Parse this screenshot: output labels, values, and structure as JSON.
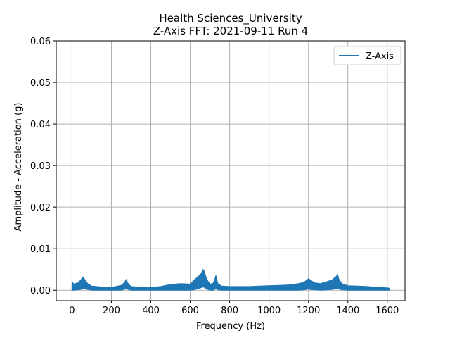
{
  "chart_data": {
    "type": "line",
    "title": "Health Sciences_University",
    "subtitle": "Z-Axis FFT: 2021-09-11 Run 4",
    "xlabel": "Frequency (Hz)",
    "ylabel": "Amplitude - Acceleration (g)",
    "xlim": [
      -80,
      1690
    ],
    "ylim": [
      -0.0025,
      0.06
    ],
    "xticks": [
      0,
      200,
      400,
      600,
      800,
      1000,
      1200,
      1400,
      1600
    ],
    "xtick_labels": [
      "0",
      "200",
      "400",
      "600",
      "800",
      "1000",
      "1200",
      "1400",
      "1600"
    ],
    "yticks": [
      0.0,
      0.01,
      0.02,
      0.03,
      0.04,
      0.05,
      0.06
    ],
    "ytick_labels": [
      "0.00",
      "0.01",
      "0.02",
      "0.03",
      "0.04",
      "0.05",
      "0.06"
    ],
    "grid": true,
    "legend_position": "top-right",
    "series": [
      {
        "name": "Z-Axis",
        "color": "#1f77b4",
        "envelope": {
          "x": [
            0,
            10,
            30,
            45,
            55,
            65,
            80,
            100,
            150,
            200,
            250,
            265,
            275,
            285,
            300,
            350,
            400,
            450,
            500,
            550,
            600,
            620,
            640,
            655,
            665,
            672,
            680,
            690,
            700,
            715,
            725,
            730,
            740,
            760,
            800,
            850,
            900,
            950,
            1000,
            1050,
            1100,
            1150,
            1180,
            1200,
            1210,
            1230,
            1260,
            1300,
            1320,
            1340,
            1348,
            1355,
            1370,
            1400,
            1450,
            1500,
            1550,
            1600,
            1610
          ],
          "upper": [
            0.002,
            0.0015,
            0.0018,
            0.0025,
            0.0032,
            0.0026,
            0.0016,
            0.001,
            0.0008,
            0.0007,
            0.0012,
            0.0018,
            0.0026,
            0.0016,
            0.0009,
            0.0007,
            0.0007,
            0.0009,
            0.0014,
            0.0016,
            0.0015,
            0.0025,
            0.0033,
            0.004,
            0.005,
            0.0045,
            0.0032,
            0.0022,
            0.0015,
            0.0016,
            0.0027,
            0.0036,
            0.0016,
            0.001,
            0.0009,
            0.0009,
            0.0009,
            0.001,
            0.0011,
            0.0012,
            0.0013,
            0.0016,
            0.002,
            0.0028,
            0.0025,
            0.0018,
            0.0016,
            0.0022,
            0.0025,
            0.0033,
            0.0038,
            0.0026,
            0.0016,
            0.0011,
            0.001,
            0.0009,
            0.0007,
            0.0006,
            0.0005
          ],
          "lower": [
            0.0,
            0.0,
            0.0001,
            0.0002,
            0.0004,
            0.0003,
            0.0002,
            0.0,
            0.0,
            0.0,
            0.0,
            0.0002,
            0.0004,
            0.0002,
            0.0,
            0.0,
            0.0,
            0.0,
            0.0,
            0.0,
            0.0,
            0.0001,
            0.0004,
            0.0006,
            0.0008,
            0.0007,
            0.0004,
            0.0002,
            0.0,
            0.0,
            0.0002,
            0.0004,
            0.0001,
            0.0,
            0.0,
            0.0,
            0.0,
            0.0,
            0.0,
            0.0,
            0.0,
            0.0,
            0.0001,
            0.0003,
            0.0002,
            0.0001,
            0.0,
            0.0001,
            0.0002,
            0.0004,
            0.0005,
            0.0003,
            0.0001,
            0.0,
            0.0,
            0.0,
            0.0,
            0.0,
            0.0
          ]
        }
      }
    ]
  }
}
